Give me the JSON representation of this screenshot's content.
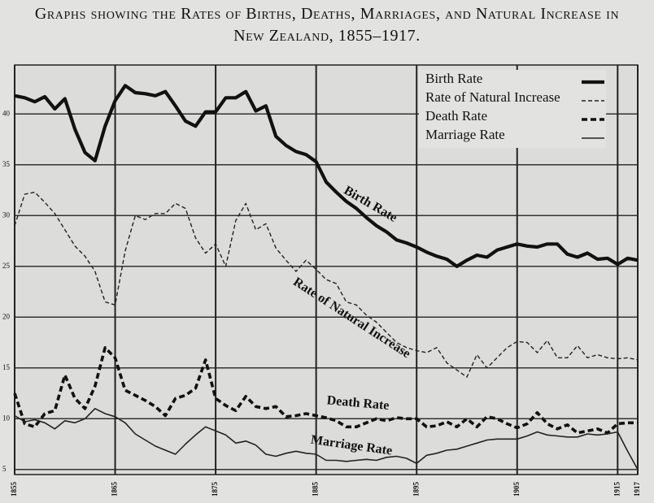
{
  "chart_data": {
    "type": "line",
    "title": "Graphs showing the Rates of Births, Deaths, Marriages, and Natural Increase in New Zealand, 1855–1917.",
    "x": [
      1855,
      1856,
      1857,
      1858,
      1859,
      1860,
      1861,
      1862,
      1863,
      1864,
      1865,
      1866,
      1867,
      1868,
      1869,
      1870,
      1871,
      1872,
      1873,
      1874,
      1875,
      1876,
      1877,
      1878,
      1879,
      1880,
      1881,
      1882,
      1883,
      1884,
      1885,
      1886,
      1887,
      1888,
      1889,
      1890,
      1891,
      1892,
      1893,
      1894,
      1895,
      1896,
      1897,
      1898,
      1899,
      1900,
      1901,
      1902,
      1903,
      1904,
      1905,
      1906,
      1907,
      1908,
      1909,
      1910,
      1911,
      1912,
      1913,
      1914,
      1915,
      1916,
      1917
    ],
    "xlim": [
      1855,
      1917
    ],
    "xticks": [
      1855,
      1865,
      1875,
      1885,
      1895,
      1905,
      1915,
      1917
    ],
    "ylim": [
      4.5,
      44.5
    ],
    "yticks": [
      5,
      10,
      15,
      20,
      25,
      30,
      35,
      40
    ],
    "grid": true,
    "legend": "upper right",
    "series": [
      {
        "name": "Birth Rate",
        "color": "#111111",
        "style": "thick",
        "values": [
          41.8,
          41.6,
          41.2,
          41.7,
          40.5,
          41.5,
          38.5,
          36.2,
          35.4,
          38.8,
          41.3,
          42.8,
          42.1,
          42.0,
          41.8,
          42.2,
          40.8,
          39.3,
          38.8,
          40.2,
          40.2,
          41.6,
          41.6,
          42.2,
          40.3,
          40.8,
          37.8,
          36.9,
          36.3,
          36.0,
          35.3,
          33.3,
          32.3,
          31.4,
          30.7,
          29.8,
          29.0,
          28.4,
          27.6,
          27.3,
          26.9,
          26.4,
          26.0,
          25.7,
          25.0,
          25.6,
          26.1,
          25.9,
          26.6,
          26.9,
          27.2,
          27.0,
          26.9,
          27.2,
          27.2,
          26.2,
          25.9,
          26.3,
          25.7,
          25.8,
          25.2,
          25.8,
          25.6
        ]
      },
      {
        "name": "Rate of Natural Increase",
        "color": "#222222",
        "style": "dashed",
        "values": [
          29.0,
          32.1,
          32.3,
          31.3,
          30.2,
          28.6,
          27.0,
          26.0,
          24.5,
          21.5,
          21.2,
          26.5,
          30.0,
          29.6,
          30.2,
          30.2,
          31.2,
          30.7,
          27.8,
          26.3,
          27.2,
          25.0,
          29.5,
          31.2,
          28.6,
          29.2,
          26.8,
          25.6,
          24.5,
          25.6,
          24.7,
          23.7,
          23.3,
          21.5,
          21.2,
          20.2,
          19.5,
          18.5,
          17.5,
          17.0,
          16.7,
          16.5,
          17.0,
          15.5,
          14.8,
          14.1,
          16.3,
          15.0,
          16.0,
          17.0,
          17.6,
          17.5,
          16.5,
          17.7,
          16.0,
          16.0,
          17.2,
          16.0,
          16.3,
          16.0,
          15.9,
          16.0,
          15.8
        ]
      },
      {
        "name": "Death Rate",
        "color": "#111111",
        "style": "thick-dashed",
        "values": [
          12.5,
          9.5,
          9.2,
          10.5,
          10.8,
          14.3,
          12.0,
          11.0,
          13.2,
          17.0,
          16.0,
          12.8,
          12.3,
          11.8,
          11.2,
          10.3,
          12.0,
          12.3,
          13.0,
          15.8,
          12.0,
          11.3,
          10.8,
          12.2,
          11.2,
          11.0,
          11.2,
          10.2,
          10.3,
          10.5,
          10.3,
          10.1,
          9.8,
          9.2,
          9.2,
          9.6,
          10.0,
          9.8,
          10.1,
          10.0,
          10.0,
          9.2,
          9.3,
          9.7,
          9.2,
          10.0,
          9.2,
          10.2,
          10.0,
          9.5,
          9.1,
          9.5,
          10.6,
          9.5,
          9.0,
          9.4,
          8.6,
          8.8,
          9.0,
          8.6,
          9.5,
          9.6,
          9.6
        ]
      },
      {
        "name": "Marriage Rate",
        "color": "#222222",
        "style": "thin",
        "values": [
          10.3,
          9.7,
          9.9,
          9.6,
          9.0,
          9.8,
          9.6,
          10.0,
          11.0,
          10.5,
          10.2,
          9.6,
          8.5,
          7.9,
          7.3,
          6.9,
          6.5,
          7.5,
          8.4,
          9.2,
          8.8,
          8.4,
          7.6,
          7.8,
          7.4,
          6.5,
          6.3,
          6.6,
          6.8,
          6.6,
          6.5,
          5.9,
          5.9,
          5.8,
          5.9,
          6.0,
          5.9,
          6.2,
          6.3,
          6.1,
          5.6,
          6.4,
          6.6,
          6.9,
          7.0,
          7.3,
          7.6,
          7.9,
          8.0,
          8.0,
          8.0,
          8.3,
          8.7,
          8.4,
          8.3,
          8.2,
          8.2,
          8.5,
          8.4,
          8.5,
          8.7,
          6.8,
          5.0
        ]
      }
    ]
  }
}
